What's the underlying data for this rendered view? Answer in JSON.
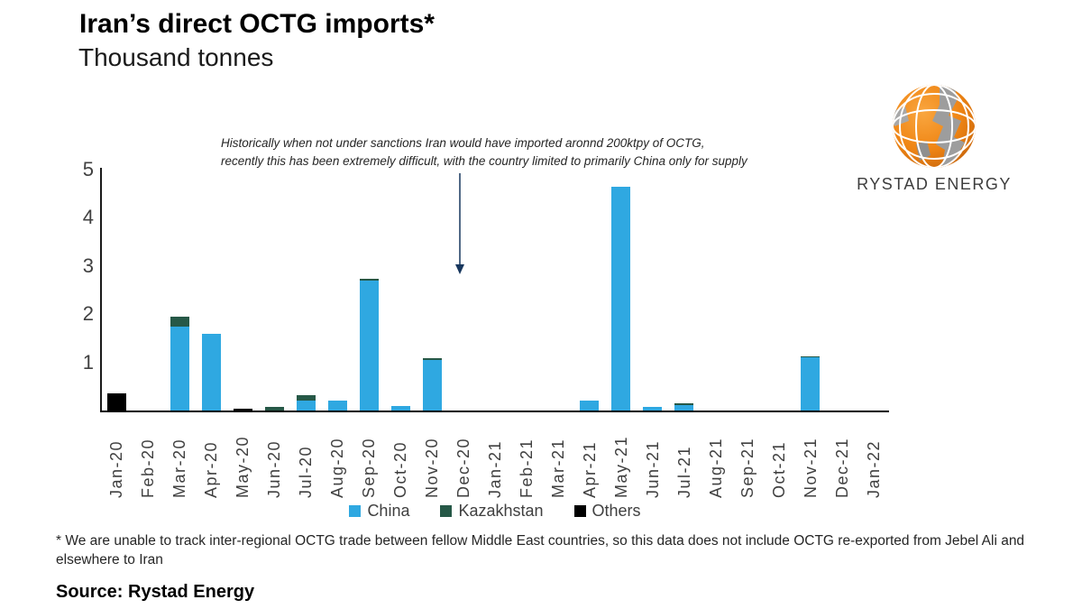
{
  "header": {
    "title": "Iran’s direct OCTG imports*",
    "subtitle": "Thousand tonnes"
  },
  "annotation": {
    "line1": "Historically when not under sanctions Iran would have imported aronnd 200ktpy of OCTG,",
    "line2": "recently this has been extremely difficult, with the country limited to primarily China only for supply",
    "arrow_icon": "down-arrow-icon",
    "arrow_color": "#17375E"
  },
  "logo": {
    "icon": "globe-icon",
    "text": "RYSTAD ENERGY"
  },
  "chart_data": {
    "type": "bar",
    "stacked": true,
    "title": "Iran’s direct OCTG imports*",
    "ylabel": "Thousand tonnes",
    "xlabel": "",
    "ylim": [
      0,
      5
    ],
    "yticks": [
      1,
      2,
      3,
      4,
      5
    ],
    "grid": false,
    "legend_position": "bottom",
    "categories": [
      "Jan-20",
      "Feb-20",
      "Mar-20",
      "Apr-20",
      "May-20",
      "Jun-20",
      "Jul-20",
      "Aug-20",
      "Sep-20",
      "Oct-20",
      "Nov-20",
      "Dec-20",
      "Jan-21",
      "Feb-21",
      "Mar-21",
      "Apr-21",
      "May-21",
      "Jun-21",
      "Jul-21",
      "Aug-21",
      "Sep-21",
      "Oct-21",
      "Nov-21",
      "Dec-21",
      "Jan-22"
    ],
    "series": [
      {
        "name": "China",
        "color": "#2FA8E1",
        "values": [
          0,
          0,
          1.75,
          1.6,
          0,
          0,
          0.2,
          0.2,
          2.7,
          0.1,
          1.05,
          0,
          0,
          0,
          0,
          0.2,
          4.65,
          0.07,
          0.12,
          0,
          0,
          0,
          1.1,
          0,
          0
        ]
      },
      {
        "name": "Kazakhstan",
        "color": "#265847",
        "values": [
          0,
          0,
          0.2,
          0,
          0,
          0.08,
          0.12,
          0,
          0.03,
          0,
          0.03,
          0,
          0,
          0,
          0,
          0,
          0,
          0,
          0.03,
          0,
          0,
          0,
          0.03,
          0,
          0
        ]
      },
      {
        "name": "Others",
        "color": "#000000",
        "values": [
          0.35,
          0,
          0,
          0,
          0.04,
          0,
          0,
          0,
          0,
          0,
          0,
          0,
          0,
          0,
          0,
          0,
          0,
          0,
          0,
          0,
          0,
          0,
          0,
          0,
          0
        ]
      }
    ]
  },
  "footnote": "* We are unable to track inter-regional OCTG trade between fellow Middle East countries, so this data does not include OCTG re-exported from Jebel Ali and elsewhere to Iran",
  "source": "Source: Rystad Energy"
}
